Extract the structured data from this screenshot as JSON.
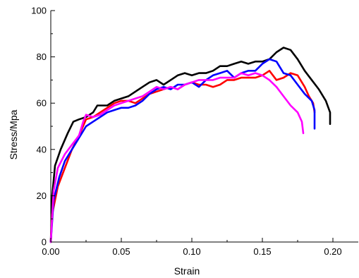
{
  "chart_data": {
    "type": "line",
    "title": "",
    "xlabel": "Strain",
    "ylabel": "Stress/Mpa",
    "xlim": [
      0,
      0.218
    ],
    "ylim": [
      0,
      100
    ],
    "xticks": [
      0.0,
      0.05,
      0.1,
      0.15,
      0.2
    ],
    "xtick_labels": [
      "0.00",
      "0.05",
      "0.10",
      "0.15",
      "0.20"
    ],
    "yticks": [
      0,
      20,
      40,
      60,
      80,
      100
    ],
    "ytick_labels": [
      "0",
      "20",
      "40",
      "60",
      "80",
      "100"
    ],
    "grid": false,
    "legend": "none",
    "series": [
      {
        "color": "#000000",
        "points": [
          [
            0,
            0
          ],
          [
            0.001,
            20
          ],
          [
            0.003,
            33
          ],
          [
            0.007,
            40
          ],
          [
            0.012,
            47
          ],
          [
            0.016,
            52
          ],
          [
            0.02,
            53
          ],
          [
            0.025,
            54
          ],
          [
            0.03,
            56
          ],
          [
            0.033,
            59
          ],
          [
            0.04,
            59
          ],
          [
            0.045,
            61
          ],
          [
            0.05,
            62
          ],
          [
            0.055,
            63
          ],
          [
            0.06,
            65
          ],
          [
            0.065,
            67
          ],
          [
            0.07,
            69
          ],
          [
            0.075,
            70
          ],
          [
            0.08,
            68
          ],
          [
            0.085,
            70
          ],
          [
            0.09,
            72
          ],
          [
            0.095,
            73
          ],
          [
            0.1,
            72
          ],
          [
            0.105,
            73
          ],
          [
            0.11,
            73
          ],
          [
            0.115,
            74
          ],
          [
            0.12,
            76
          ],
          [
            0.125,
            76
          ],
          [
            0.13,
            77
          ],
          [
            0.135,
            78
          ],
          [
            0.14,
            77
          ],
          [
            0.145,
            78
          ],
          [
            0.15,
            78
          ],
          [
            0.155,
            79
          ],
          [
            0.16,
            82
          ],
          [
            0.165,
            84
          ],
          [
            0.17,
            83
          ],
          [
            0.175,
            79
          ],
          [
            0.18,
            74
          ],
          [
            0.185,
            70
          ],
          [
            0.19,
            66
          ],
          [
            0.195,
            61
          ],
          [
            0.198,
            56
          ],
          [
            0.198,
            51
          ]
        ]
      },
      {
        "color": "#ff0000",
        "points": [
          [
            0,
            0
          ],
          [
            0.001,
            12
          ],
          [
            0.005,
            24
          ],
          [
            0.01,
            32
          ],
          [
            0.015,
            40
          ],
          [
            0.02,
            46
          ],
          [
            0.025,
            53
          ],
          [
            0.03,
            54
          ],
          [
            0.035,
            56
          ],
          [
            0.04,
            58
          ],
          [
            0.045,
            60
          ],
          [
            0.05,
            61
          ],
          [
            0.055,
            61
          ],
          [
            0.06,
            60
          ],
          [
            0.065,
            62
          ],
          [
            0.07,
            64
          ],
          [
            0.075,
            65
          ],
          [
            0.08,
            66
          ],
          [
            0.085,
            67
          ],
          [
            0.09,
            66
          ],
          [
            0.095,
            68
          ],
          [
            0.1,
            69
          ],
          [
            0.105,
            68
          ],
          [
            0.11,
            68
          ],
          [
            0.115,
            67
          ],
          [
            0.12,
            68
          ],
          [
            0.125,
            70
          ],
          [
            0.13,
            70
          ],
          [
            0.135,
            71
          ],
          [
            0.14,
            71
          ],
          [
            0.145,
            71
          ],
          [
            0.15,
            72
          ],
          [
            0.155,
            74
          ],
          [
            0.16,
            70
          ],
          [
            0.165,
            71
          ],
          [
            0.17,
            73
          ],
          [
            0.175,
            72
          ],
          [
            0.18,
            67
          ],
          [
            0.183,
            63
          ],
          [
            0.186,
            60
          ],
          [
            0.187,
            56
          ]
        ]
      },
      {
        "color": "#0000ff",
        "points": [
          [
            0,
            0
          ],
          [
            0.002,
            18
          ],
          [
            0.006,
            28
          ],
          [
            0.01,
            35
          ],
          [
            0.015,
            40
          ],
          [
            0.02,
            45
          ],
          [
            0.025,
            50
          ],
          [
            0.03,
            52
          ],
          [
            0.035,
            54
          ],
          [
            0.04,
            56
          ],
          [
            0.045,
            57
          ],
          [
            0.05,
            58
          ],
          [
            0.055,
            58
          ],
          [
            0.06,
            59
          ],
          [
            0.065,
            61
          ],
          [
            0.07,
            64
          ],
          [
            0.075,
            66
          ],
          [
            0.08,
            67
          ],
          [
            0.085,
            66
          ],
          [
            0.09,
            68
          ],
          [
            0.095,
            68
          ],
          [
            0.1,
            69
          ],
          [
            0.105,
            67
          ],
          [
            0.11,
            70
          ],
          [
            0.115,
            72
          ],
          [
            0.12,
            73
          ],
          [
            0.125,
            74
          ],
          [
            0.13,
            71
          ],
          [
            0.135,
            73
          ],
          [
            0.14,
            74
          ],
          [
            0.145,
            74
          ],
          [
            0.15,
            77
          ],
          [
            0.155,
            79
          ],
          [
            0.16,
            78
          ],
          [
            0.165,
            73
          ],
          [
            0.17,
            72
          ],
          [
            0.175,
            68
          ],
          [
            0.18,
            64
          ],
          [
            0.185,
            61
          ],
          [
            0.187,
            57
          ],
          [
            0.187,
            49
          ]
        ]
      },
      {
        "color": "#ff00ff",
        "points": [
          [
            0,
            0
          ],
          [
            0.002,
            22
          ],
          [
            0.005,
            32
          ],
          [
            0.01,
            38
          ],
          [
            0.015,
            42
          ],
          [
            0.02,
            46
          ],
          [
            0.023,
            52
          ],
          [
            0.025,
            55
          ],
          [
            0.03,
            54
          ],
          [
            0.035,
            55
          ],
          [
            0.04,
            57
          ],
          [
            0.045,
            59
          ],
          [
            0.05,
            60
          ],
          [
            0.055,
            61
          ],
          [
            0.06,
            62
          ],
          [
            0.065,
            63
          ],
          [
            0.07,
            65
          ],
          [
            0.075,
            67
          ],
          [
            0.08,
            66
          ],
          [
            0.085,
            67
          ],
          [
            0.09,
            66
          ],
          [
            0.095,
            68
          ],
          [
            0.1,
            69
          ],
          [
            0.105,
            70
          ],
          [
            0.11,
            70
          ],
          [
            0.115,
            70
          ],
          [
            0.12,
            71
          ],
          [
            0.125,
            71
          ],
          [
            0.13,
            71
          ],
          [
            0.135,
            73
          ],
          [
            0.14,
            72
          ],
          [
            0.145,
            73
          ],
          [
            0.15,
            72
          ],
          [
            0.155,
            70
          ],
          [
            0.16,
            67
          ],
          [
            0.165,
            63
          ],
          [
            0.17,
            59
          ],
          [
            0.175,
            56
          ],
          [
            0.178,
            52
          ],
          [
            0.179,
            47
          ]
        ]
      }
    ]
  }
}
